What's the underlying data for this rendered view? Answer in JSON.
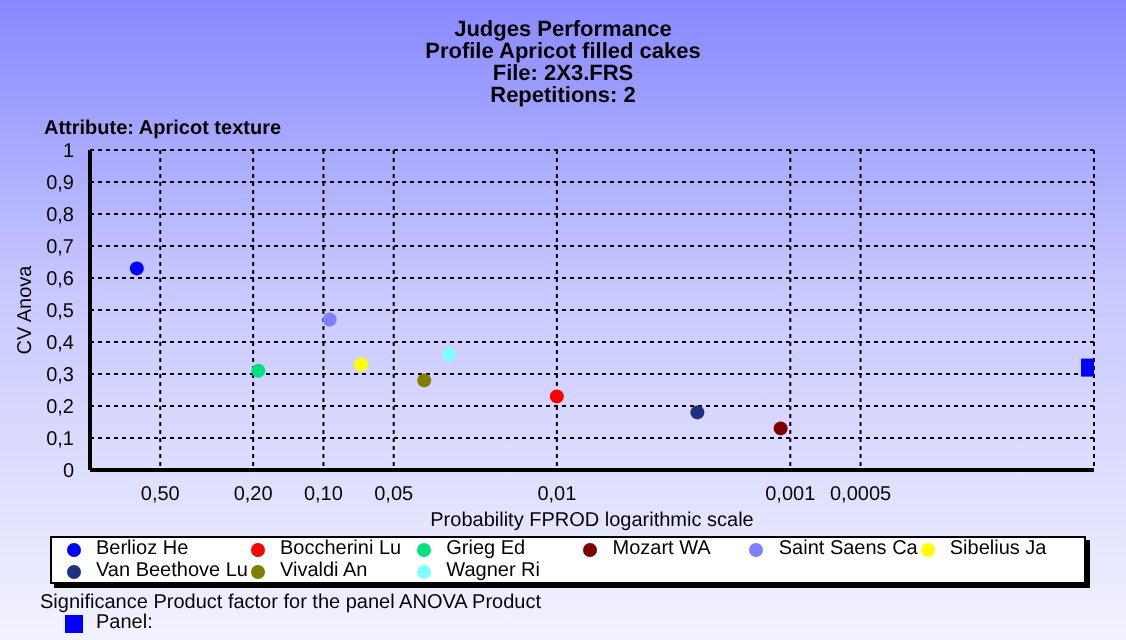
{
  "chart_data": {
    "type": "scatter",
    "title": "Judges Performance",
    "subtitle": "Profile Apricot filled cakes\nFile: 2X3.FRS\nRepetitions: 2",
    "xlabel": "Probability FPROD logarithmic scale",
    "ylabel": "CV Anova",
    "annotations": [
      "Attribute: Apricot texture",
      "Significance Product factor for the panel ANOVA Product"
    ],
    "log": "x",
    "grid": true,
    "legend": "bottom",
    "marker": "circle",
    "xlim": [
      1,
      5e-05
    ],
    "xticks": [
      {
        "value": 0.5,
        "label": "0,50"
      },
      {
        "value": 0.2,
        "label": "0,20"
      },
      {
        "value": 0.1,
        "label": "0,10"
      },
      {
        "value": 0.05,
        "label": "0,05"
      },
      {
        "value": 0.01,
        "label": "0,01"
      },
      {
        "value": 0.001,
        "label": "0,001"
      },
      {
        "value": 0.0005,
        "label": "0,0005"
      }
    ],
    "ylim": [
      0,
      1
    ],
    "yticks": [
      0,
      {
        "value": 0.1,
        "label": "0,1"
      },
      {
        "value": 0.2,
        "label": "0,2"
      },
      {
        "value": 0.3,
        "label": "0,3"
      },
      {
        "value": 0.4,
        "label": "0,4"
      },
      {
        "value": 0.5,
        "label": "0,5"
      },
      {
        "value": 0.6,
        "label": "0,6"
      },
      {
        "value": 0.7,
        "label": "0,7"
      },
      {
        "value": 0.8,
        "label": "0,8"
      },
      {
        "value": 0.9,
        "label": "0,9"
      },
      1
    ],
    "series": [
      {
        "name": "Berlioz He",
        "color": "#0000ff",
        "x": [
          0.63
        ],
        "values": [
          0.63
        ]
      },
      {
        "name": "Boccherini Lu",
        "color": "#ff0000",
        "x": [
          0.01
        ],
        "values": [
          0.23
        ]
      },
      {
        "name": "Grieg Ed",
        "color": "#00e080",
        "x": [
          0.19
        ],
        "values": [
          0.31
        ]
      },
      {
        "name": "Mozart WA",
        "color": "#800000",
        "x": [
          0.0011
        ],
        "values": [
          0.13
        ]
      },
      {
        "name": "Saint Saens Ca",
        "color": "#8080ff",
        "x": [
          0.094
        ],
        "values": [
          0.47
        ]
      },
      {
        "name": "Sibelius Ja",
        "color": "#ffff00",
        "x": [
          0.069
        ],
        "values": [
          0.33
        ]
      },
      {
        "name": "Van Beethove Lu",
        "color": "#203080",
        "x": [
          0.0025
        ],
        "values": [
          0.18
        ]
      },
      {
        "name": "Vivaldi An",
        "color": "#808000",
        "x": [
          0.037
        ],
        "values": [
          0.28
        ]
      },
      {
        "name": "Wagner Ri",
        "color": "#80ffff",
        "x": [
          0.029
        ],
        "values": [
          0.36
        ]
      },
      {
        "name": "Panel:",
        "color": "#0000ff",
        "marker": "square",
        "x": [
          5.2e-05
        ],
        "values": [
          0.32
        ]
      }
    ]
  }
}
